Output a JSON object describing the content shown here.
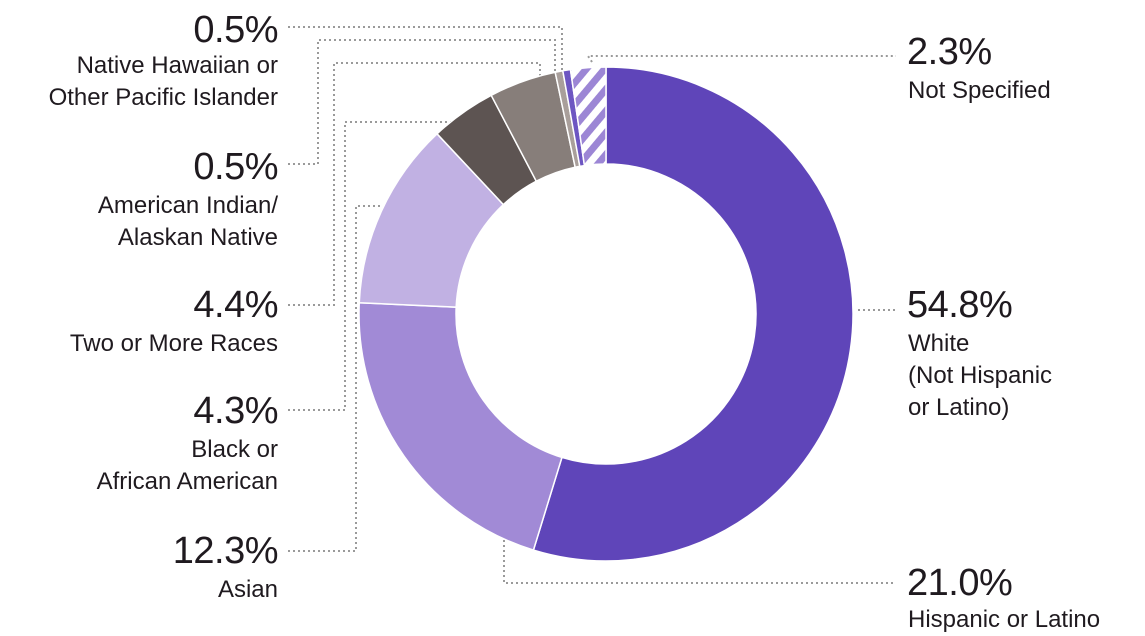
{
  "colors": {
    "white": "#5f45b9",
    "hispanic": "#a18ad6",
    "asian": "#c1b1e3",
    "black": "#5d5452",
    "two_or_more": "#877e7a",
    "american_indian": "#a99f9b",
    "native_hawaiian": "#6d56c2",
    "not_specified_base": "#ffffff",
    "not_specified_stripe": "#9c86d5",
    "leader": "#9a9a9a"
  },
  "chart_data": {
    "type": "pie",
    "donut": true,
    "series": [
      {
        "name": "White (Not Hispanic or Latino)",
        "value": 54.8,
        "pct_label": "54.8%",
        "label": "White\n(Not Hispanic\nor Latino)",
        "color_key": "white"
      },
      {
        "name": "Hispanic or Latino",
        "value": 21.0,
        "pct_label": "21.0%",
        "label": "Hispanic or Latino",
        "color_key": "hispanic"
      },
      {
        "name": "Asian",
        "value": 12.3,
        "pct_label": "12.3%",
        "label": "Asian",
        "color_key": "asian"
      },
      {
        "name": "Black or African American",
        "value": 4.3,
        "pct_label": "4.3%",
        "label": "Black or\nAfrican American",
        "color_key": "black"
      },
      {
        "name": "Two or More Races",
        "value": 4.4,
        "pct_label": "4.4%",
        "label": "Two or More Races",
        "color_key": "two_or_more"
      },
      {
        "name": "American Indian/Alaskan Native",
        "value": 0.5,
        "pct_label": "0.5%",
        "label": "American Indian/\nAlaskan Native",
        "color_key": "american_indian"
      },
      {
        "name": "Native Hawaiian or Other Pacific Islander",
        "value": 0.5,
        "pct_label": "0.5%",
        "label": "Native Hawaiian or\nOther Pacific Islander",
        "color_key": "native_hawaiian"
      },
      {
        "name": "Not Specified",
        "value": 2.3,
        "pct_label": "2.3%",
        "label": "Not Specified",
        "color_key": "not_specified_stripe",
        "pattern": "hatched"
      }
    ]
  }
}
